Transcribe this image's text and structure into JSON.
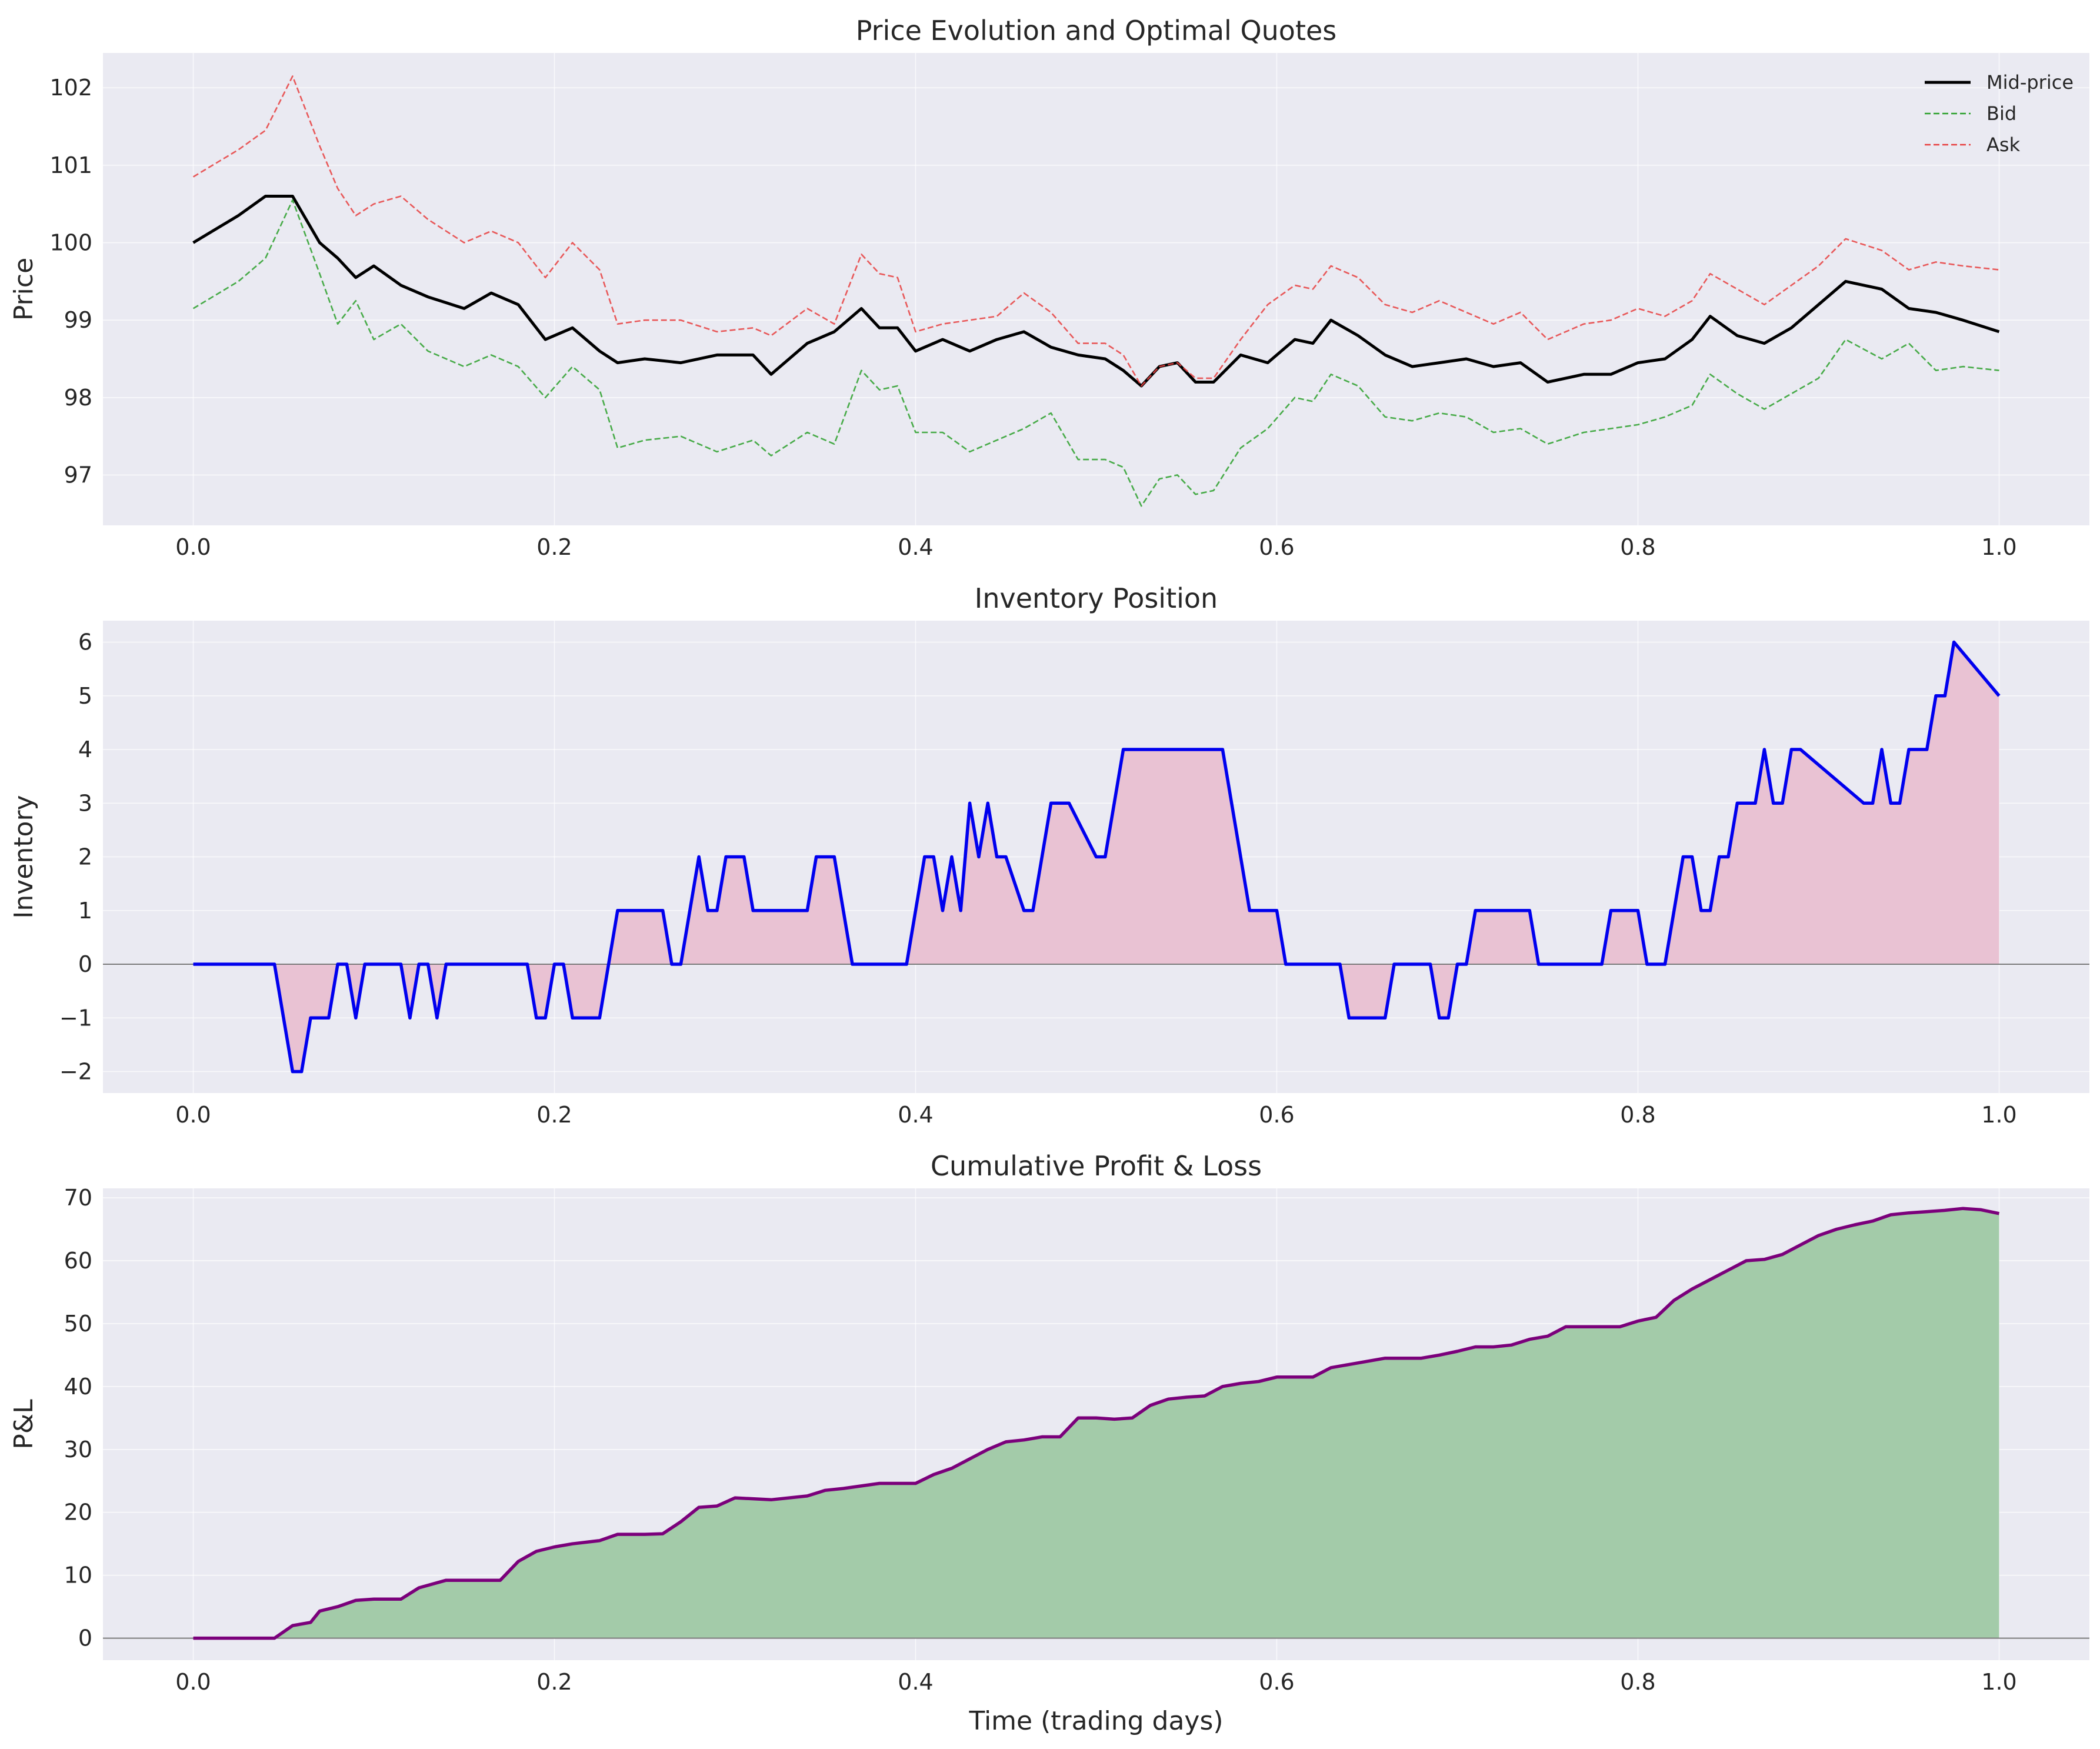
{
  "chart_data": [
    {
      "type": "line",
      "title": "Price Evolution and Optimal Quotes",
      "xlabel": "",
      "ylabel": "Price",
      "xlim": [
        -0.05,
        1.05
      ],
      "ylim": [
        96.35,
        102.45
      ],
      "xticks": [
        0.0,
        0.2,
        0.4,
        0.6,
        0.8,
        1.0
      ],
      "xtick_labels": [
        "0.0",
        "0.2",
        "0.4",
        "0.6",
        "0.8",
        "1.0"
      ],
      "yticks": [
        97,
        98,
        99,
        100,
        101,
        102
      ],
      "ytick_labels": [
        "97",
        "98",
        "99",
        "100",
        "101",
        "102"
      ],
      "grid": true,
      "legend": "top-right",
      "x": [
        0.0,
        0.025,
        0.04,
        0.055,
        0.07,
        0.08,
        0.09,
        0.1,
        0.115,
        0.13,
        0.15,
        0.165,
        0.18,
        0.195,
        0.21,
        0.225,
        0.235,
        0.25,
        0.27,
        0.29,
        0.31,
        0.32,
        0.34,
        0.355,
        0.37,
        0.38,
        0.39,
        0.4,
        0.415,
        0.43,
        0.445,
        0.46,
        0.475,
        0.49,
        0.505,
        0.515,
        0.525,
        0.535,
        0.545,
        0.555,
        0.565,
        0.58,
        0.595,
        0.61,
        0.62,
        0.63,
        0.645,
        0.66,
        0.675,
        0.69,
        0.705,
        0.72,
        0.735,
        0.75,
        0.77,
        0.785,
        0.8,
        0.815,
        0.83,
        0.84,
        0.855,
        0.87,
        0.885,
        0.9,
        0.915,
        0.935,
        0.95,
        0.965,
        0.98,
        1.0
      ],
      "series": [
        {
          "name": "Mid-price",
          "color": "#000000",
          "style": "solid",
          "values": [
            100.0,
            100.35,
            100.6,
            100.6,
            100.0,
            99.8,
            99.55,
            99.7,
            99.45,
            99.3,
            99.15,
            99.35,
            99.2,
            98.75,
            98.9,
            98.6,
            98.45,
            98.5,
            98.45,
            98.55,
            98.55,
            98.3,
            98.7,
            98.85,
            99.15,
            98.9,
            98.9,
            98.6,
            98.75,
            98.6,
            98.75,
            98.85,
            98.65,
            98.55,
            98.5,
            98.35,
            98.15,
            98.4,
            98.45,
            98.2,
            98.2,
            98.55,
            98.45,
            98.75,
            98.7,
            99.0,
            98.8,
            98.55,
            98.4,
            98.45,
            98.5,
            98.4,
            98.45,
            98.2,
            98.3,
            98.3,
            98.45,
            98.5,
            98.75,
            99.05,
            98.8,
            98.7,
            98.9,
            99.2,
            99.5,
            99.4,
            99.15,
            99.1,
            99.0,
            98.85
          ]
        },
        {
          "name": "Bid",
          "color": "#2ca02c",
          "style": "dashed",
          "values": [
            99.15,
            99.5,
            99.8,
            100.55,
            99.6,
            98.95,
            99.25,
            98.75,
            98.95,
            98.6,
            98.4,
            98.55,
            98.4,
            98.0,
            98.4,
            98.1,
            97.35,
            97.45,
            97.5,
            97.3,
            97.45,
            97.25,
            97.55,
            97.4,
            98.35,
            98.1,
            98.15,
            97.55,
            97.55,
            97.3,
            97.45,
            97.6,
            97.8,
            97.2,
            97.2,
            97.1,
            96.6,
            96.95,
            97.0,
            96.75,
            96.8,
            97.35,
            97.6,
            98.0,
            97.95,
            98.3,
            98.15,
            97.75,
            97.7,
            97.8,
            97.75,
            97.55,
            97.6,
            97.4,
            97.55,
            97.6,
            97.65,
            97.75,
            97.9,
            98.3,
            98.05,
            97.85,
            98.05,
            98.25,
            98.75,
            98.5,
            98.7,
            98.35,
            98.4,
            98.35
          ]
        },
        {
          "name": "Ask",
          "color": "#e83f3f",
          "style": "dashed",
          "values": [
            100.85,
            101.2,
            101.45,
            102.15,
            101.25,
            100.7,
            100.35,
            100.5,
            100.6,
            100.3,
            100.0,
            100.15,
            100.0,
            99.55,
            100.0,
            99.65,
            98.95,
            99.0,
            99.0,
            98.85,
            98.9,
            98.8,
            99.15,
            98.95,
            99.85,
            99.6,
            99.55,
            98.85,
            98.95,
            99.0,
            99.05,
            99.35,
            99.1,
            98.7,
            98.7,
            98.55,
            98.15,
            98.4,
            98.45,
            98.25,
            98.25,
            98.75,
            99.2,
            99.45,
            99.4,
            99.7,
            99.55,
            99.2,
            99.1,
            99.25,
            99.1,
            98.95,
            99.1,
            98.75,
            98.95,
            99.0,
            99.15,
            99.05,
            99.25,
            99.6,
            99.4,
            99.2,
            99.45,
            99.7,
            100.05,
            99.9,
            99.65,
            99.75,
            99.7,
            99.65
          ]
        }
      ]
    },
    {
      "type": "area",
      "title": "Inventory Position",
      "xlabel": "",
      "ylabel": "Inventory",
      "xlim": [
        -0.05,
        1.05
      ],
      "ylim": [
        -2.4,
        6.4
      ],
      "xticks": [
        0.0,
        0.2,
        0.4,
        0.6,
        0.8,
        1.0
      ],
      "xtick_labels": [
        "0.0",
        "0.2",
        "0.4",
        "0.6",
        "0.8",
        "1.0"
      ],
      "yticks": [
        -2,
        -1,
        0,
        1,
        2,
        3,
        4,
        5,
        6
      ],
      "ytick_labels": [
        "−2",
        "−1",
        "0",
        "1",
        "2",
        "3",
        "4",
        "5",
        "6"
      ],
      "grid": true,
      "line_color": "#0000ee",
      "fill_color": "#e9c2d3",
      "x": [
        0.0,
        0.045,
        0.055,
        0.06,
        0.065,
        0.075,
        0.08,
        0.085,
        0.09,
        0.095,
        0.115,
        0.12,
        0.125,
        0.13,
        0.135,
        0.14,
        0.185,
        0.19,
        0.195,
        0.2,
        0.205,
        0.21,
        0.225,
        0.235,
        0.26,
        0.265,
        0.27,
        0.28,
        0.285,
        0.29,
        0.295,
        0.305,
        0.31,
        0.34,
        0.345,
        0.355,
        0.365,
        0.395,
        0.405,
        0.41,
        0.415,
        0.42,
        0.425,
        0.43,
        0.435,
        0.44,
        0.445,
        0.45,
        0.46,
        0.465,
        0.475,
        0.485,
        0.5,
        0.505,
        0.515,
        0.525,
        0.57,
        0.585,
        0.6,
        0.605,
        0.635,
        0.64,
        0.66,
        0.665,
        0.685,
        0.69,
        0.695,
        0.7,
        0.705,
        0.71,
        0.74,
        0.745,
        0.78,
        0.785,
        0.8,
        0.805,
        0.815,
        0.825,
        0.83,
        0.835,
        0.84,
        0.845,
        0.85,
        0.855,
        0.865,
        0.87,
        0.875,
        0.88,
        0.885,
        0.89,
        0.925,
        0.93,
        0.935,
        0.94,
        0.945,
        0.95,
        0.96,
        0.965,
        0.97,
        0.975,
        1.0
      ],
      "values": [
        0,
        0,
        -2,
        -2,
        -1,
        -1,
        0,
        0,
        -1,
        0,
        0,
        -1,
        0,
        0,
        -1,
        0,
        0,
        -1,
        -1,
        0,
        0,
        -1,
        -1,
        1,
        1,
        0,
        0,
        2,
        1,
        1,
        2,
        2,
        1,
        1,
        2,
        2,
        0,
        0,
        2,
        2,
        1,
        2,
        1,
        3,
        2,
        3,
        2,
        2,
        1,
        1,
        3,
        3,
        2,
        2,
        4,
        4,
        4,
        1,
        1,
        0,
        0,
        -1,
        -1,
        0,
        0,
        -1,
        -1,
        0,
        0,
        1,
        1,
        0,
        0,
        1,
        1,
        0,
        0,
        2,
        2,
        1,
        1,
        2,
        2,
        3,
        3,
        4,
        3,
        3,
        4,
        4,
        3,
        3,
        4,
        3,
        3,
        4,
        4,
        5,
        5,
        6,
        5
      ]
    },
    {
      "type": "area",
      "title": "Cumulative Profit & Loss",
      "xlabel": "Time (trading days)",
      "ylabel": "P&L",
      "xlim": [
        -0.05,
        1.05
      ],
      "ylim": [
        -3.5,
        71.5
      ],
      "xticks": [
        0.0,
        0.2,
        0.4,
        0.6,
        0.8,
        1.0
      ],
      "xtick_labels": [
        "0.0",
        "0.2",
        "0.4",
        "0.6",
        "0.8",
        "1.0"
      ],
      "yticks": [
        0,
        10,
        20,
        30,
        40,
        50,
        60,
        70
      ],
      "ytick_labels": [
        "0",
        "10",
        "20",
        "30",
        "40",
        "50",
        "60",
        "70"
      ],
      "grid": true,
      "line_color": "#7b007b",
      "fill_color": "#a3cba9",
      "x": [
        0.0,
        0.045,
        0.055,
        0.065,
        0.07,
        0.08,
        0.09,
        0.1,
        0.115,
        0.125,
        0.14,
        0.17,
        0.18,
        0.19,
        0.2,
        0.21,
        0.225,
        0.235,
        0.25,
        0.26,
        0.27,
        0.28,
        0.29,
        0.3,
        0.32,
        0.34,
        0.35,
        0.36,
        0.38,
        0.4,
        0.41,
        0.42,
        0.43,
        0.44,
        0.45,
        0.46,
        0.47,
        0.48,
        0.49,
        0.5,
        0.51,
        0.52,
        0.53,
        0.54,
        0.55,
        0.56,
        0.57,
        0.58,
        0.59,
        0.6,
        0.62,
        0.63,
        0.64,
        0.65,
        0.66,
        0.68,
        0.69,
        0.7,
        0.71,
        0.72,
        0.73,
        0.74,
        0.75,
        0.76,
        0.79,
        0.8,
        0.81,
        0.82,
        0.83,
        0.84,
        0.85,
        0.86,
        0.87,
        0.88,
        0.89,
        0.9,
        0.91,
        0.92,
        0.93,
        0.94,
        0.95,
        0.96,
        0.97,
        0.98,
        0.99,
        1.0
      ],
      "values": [
        0,
        0,
        2,
        2.5,
        4.3,
        5,
        6,
        6.2,
        6.2,
        8,
        9.2,
        9.2,
        12.2,
        13.8,
        14.5,
        15,
        15.5,
        16.5,
        16.5,
        16.6,
        18.5,
        20.8,
        21,
        22.3,
        22,
        22.6,
        23.5,
        23.8,
        24.6,
        24.6,
        26,
        27,
        28.5,
        30,
        31.2,
        31.5,
        32,
        32,
        35,
        35,
        34.8,
        35,
        37,
        38,
        38.3,
        38.5,
        40,
        40.5,
        40.8,
        41.5,
        41.5,
        43,
        43.5,
        44,
        44.5,
        44.5,
        45,
        45.6,
        46.3,
        46.3,
        46.6,
        47.5,
        48,
        49.5,
        49.5,
        50.4,
        51,
        53.7,
        55.5,
        57,
        58.5,
        60,
        60.2,
        61,
        62.5,
        64,
        65,
        65.7,
        66.3,
        67.3,
        67.6,
        67.8,
        68,
        68.3,
        68.1,
        67.5
      ]
    }
  ]
}
